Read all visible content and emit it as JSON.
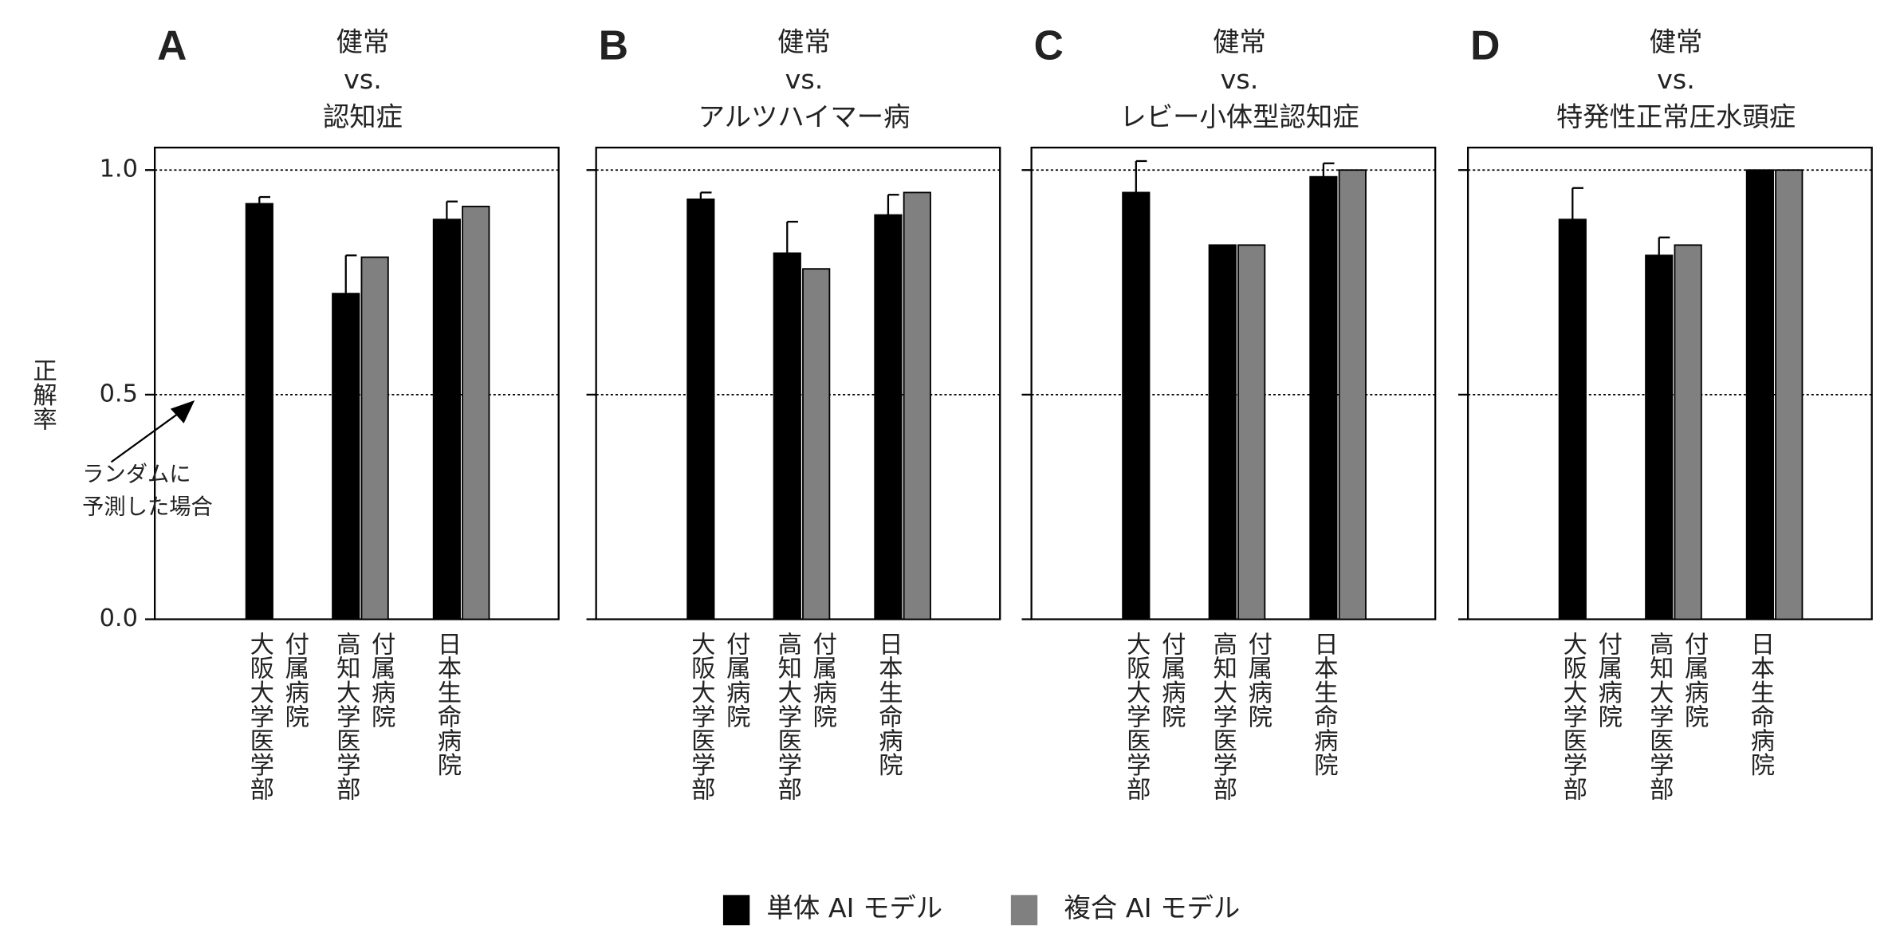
{
  "chart_data": [
    {
      "type": "bar",
      "panel": "A",
      "title": [
        "健常",
        "vs.",
        "認知症"
      ],
      "y_label": "正解率",
      "annotation": [
        "ランダムに",
        "予測した場合"
      ],
      "categories": [
        [
          "大阪大学医学部",
          "付属病院"
        ],
        [
          "高知大学医学部",
          "付属病院"
        ],
        [
          "日本生命病院"
        ]
      ],
      "series": [
        {
          "name": "単体 AI モデル",
          "color": "#000000",
          "values": [
            0.925,
            0.725,
            0.89
          ],
          "errors": [
            0.015,
            0.085,
            0.04
          ]
        },
        {
          "name": "複合 AI モデル",
          "color": "#808080",
          "values": [
            null,
            0.806,
            0.919
          ]
        }
      ],
      "ylim": [
        0,
        1.05
      ],
      "yticks": [
        {
          "value": 0,
          "label": "0.0"
        },
        {
          "value": 0.5,
          "label": "0.5"
        },
        {
          "value": 1,
          "label": "1.0"
        }
      ],
      "grid": true
    },
    {
      "type": "bar",
      "panel": "B",
      "title": [
        "健常",
        "vs.",
        "アルツハイマー病"
      ],
      "categories": [
        [
          "大阪大学医学部",
          "付属病院"
        ],
        [
          "高知大学医学部",
          "付属病院"
        ],
        [
          "日本生命病院"
        ]
      ],
      "series": [
        {
          "name": "単体 AI モデル",
          "color": "#000000",
          "values": [
            0.935,
            0.815,
            0.9
          ],
          "errors": [
            0.015,
            0.07,
            0.045
          ]
        },
        {
          "name": "複合 AI モデル",
          "color": "#808080",
          "values": [
            null,
            0.78,
            0.95
          ]
        }
      ],
      "ylim": [
        0,
        1.05
      ],
      "yticks": [
        0,
        0.5,
        1
      ],
      "grid": true
    },
    {
      "type": "bar",
      "panel": "C",
      "title": [
        "健常",
        "vs.",
        "レビー小体型認知症"
      ],
      "categories": [
        [
          "大阪大学医学部",
          "付属病院"
        ],
        [
          "高知大学医学部",
          "付属病院"
        ],
        [
          "日本生命病院"
        ]
      ],
      "series": [
        {
          "name": "単体 AI モデル",
          "color": "#000000",
          "values": [
            0.95,
            0.833,
            0.985
          ],
          "errors": [
            0.07,
            null,
            0.03
          ]
        },
        {
          "name": "複合 AI モデル",
          "color": "#808080",
          "values": [
            null,
            0.833,
            1.0
          ]
        }
      ],
      "ylim": [
        0,
        1.05
      ],
      "yticks": [
        0,
        0.5,
        1
      ],
      "grid": true
    },
    {
      "type": "bar",
      "panel": "D",
      "title": [
        "健常",
        "vs.",
        "特発性正常圧水頭症"
      ],
      "categories": [
        [
          "大阪大学医学部",
          "付属病院"
        ],
        [
          "高知大学医学部",
          "付属病院"
        ],
        [
          "日本生命病院"
        ]
      ],
      "series": [
        {
          "name": "単体 AI モデル",
          "color": "#000000",
          "values": [
            0.89,
            0.81,
            1.0
          ],
          "errors": [
            0.07,
            0.04,
            null
          ]
        },
        {
          "name": "複合 AI モデル",
          "color": "#808080",
          "values": [
            null,
            0.833,
            1.0
          ]
        }
      ],
      "ylim": [
        0,
        1.05
      ],
      "yticks": [
        0,
        0.5,
        1
      ],
      "grid": true
    }
  ]
}
